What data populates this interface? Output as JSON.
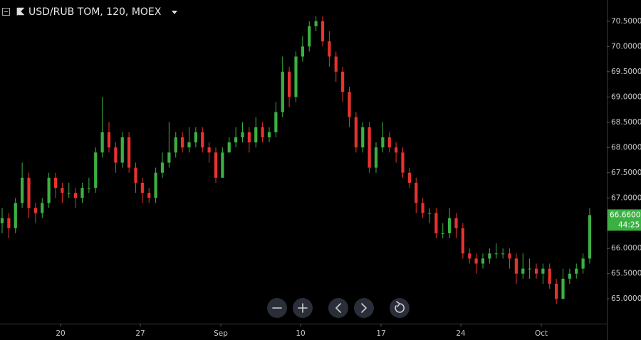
{
  "chart_data": {
    "type": "candlestick",
    "title": "USD/RUB TOM, 120, MOEX",
    "up_color": "#3cb043",
    "down_color": "#e8322e",
    "grid": false,
    "open": [
      66.5,
      66.6,
      66.4,
      66.9,
      67.4,
      66.8,
      66.7,
      66.9,
      67.4,
      67.2,
      67.1,
      67.1,
      67.0,
      67.2,
      67.2,
      67.9,
      68.3,
      68.0,
      67.7,
      68.2,
      67.6,
      67.3,
      67.1,
      67.0,
      67.5,
      67.7,
      67.9,
      68.2,
      68.0,
      68.1,
      68.3,
      68.0,
      67.9,
      67.4,
      67.9,
      68.1,
      68.2,
      68.3,
      68.1,
      68.4,
      68.2,
      68.3,
      68.7,
      69.5,
      69.0,
      69.8,
      70.0,
      70.4,
      70.5,
      70.1,
      69.8,
      69.5,
      69.1,
      68.6,
      68.0,
      68.4,
      67.6,
      68.0,
      68.2,
      68.0,
      67.9,
      67.5,
      67.3,
      66.9,
      66.7,
      66.7,
      66.3,
      66.3,
      66.6,
      66.4,
      65.9,
      65.8,
      65.7,
      65.8,
      65.9,
      65.9,
      65.9,
      65.8,
      65.5,
      65.6,
      65.6,
      65.5,
      65.6,
      65.3,
      65.0,
      65.4,
      65.5,
      65.6,
      65.8
    ],
    "high": [
      66.8,
      66.7,
      67.0,
      67.7,
      67.5,
      66.9,
      67.0,
      67.5,
      67.5,
      67.3,
      67.3,
      67.2,
      67.3,
      67.4,
      68.0,
      69.0,
      68.5,
      68.1,
      68.3,
      68.3,
      67.7,
      67.4,
      67.2,
      67.6,
      67.9,
      68.5,
      68.3,
      68.3,
      68.4,
      68.4,
      68.4,
      68.1,
      68.0,
      68.0,
      68.2,
      68.4,
      68.5,
      68.4,
      68.6,
      68.5,
      68.4,
      68.9,
      69.8,
      69.6,
      69.9,
      70.2,
      70.5,
      70.6,
      70.6,
      70.3,
      69.9,
      69.6,
      69.2,
      68.7,
      68.5,
      68.5,
      68.1,
      68.5,
      68.3,
      68.1,
      68.0,
      67.6,
      67.4,
      67.0,
      66.8,
      66.8,
      66.5,
      66.8,
      66.7,
      66.5,
      66.0,
      65.9,
      65.9,
      66.0,
      66.1,
      66.0,
      66.0,
      65.9,
      65.9,
      65.8,
      65.7,
      65.7,
      65.7,
      65.4,
      65.6,
      65.6,
      65.7,
      65.9,
      66.8
    ],
    "low": [
      66.3,
      66.2,
      66.3,
      66.8,
      66.6,
      66.5,
      66.6,
      66.8,
      67.0,
      66.9,
      67.0,
      66.8,
      66.9,
      67.1,
      67.1,
      67.8,
      67.9,
      67.5,
      67.6,
      67.5,
      67.1,
      66.9,
      66.9,
      66.9,
      67.4,
      67.6,
      67.8,
      67.9,
      67.9,
      68.0,
      67.9,
      67.7,
      67.3,
      67.4,
      67.9,
      68.0,
      68.1,
      67.9,
      68.0,
      68.1,
      68.1,
      68.2,
      68.6,
      68.8,
      68.9,
      69.7,
      69.9,
      70.3,
      70.0,
      69.6,
      69.3,
      68.9,
      68.4,
      67.9,
      67.9,
      67.5,
      67.5,
      67.9,
      67.9,
      67.7,
      67.4,
      67.2,
      66.7,
      66.6,
      66.5,
      66.2,
      66.2,
      66.2,
      66.2,
      65.8,
      65.7,
      65.5,
      65.6,
      65.7,
      65.8,
      65.8,
      65.6,
      65.3,
      65.4,
      65.4,
      65.4,
      65.3,
      65.2,
      64.9,
      65.0,
      65.3,
      65.4,
      65.5,
      65.7
    ],
    "close": [
      66.6,
      66.4,
      66.9,
      67.4,
      66.8,
      66.7,
      66.9,
      67.4,
      67.2,
      67.1,
      67.1,
      67.0,
      67.2,
      67.2,
      67.9,
      68.3,
      68.0,
      67.7,
      68.2,
      67.6,
      67.3,
      67.1,
      67.0,
      67.5,
      67.7,
      67.9,
      68.2,
      68.0,
      68.1,
      68.3,
      68.0,
      67.9,
      67.4,
      67.9,
      68.1,
      68.2,
      68.3,
      68.1,
      68.4,
      68.2,
      68.3,
      68.7,
      69.5,
      69.0,
      69.8,
      70.0,
      70.4,
      70.5,
      70.1,
      69.8,
      69.5,
      69.1,
      68.6,
      68.0,
      68.4,
      67.6,
      68.0,
      68.2,
      68.0,
      67.9,
      67.5,
      67.3,
      66.9,
      66.7,
      66.7,
      66.3,
      66.3,
      66.6,
      66.4,
      65.9,
      65.8,
      65.7,
      65.8,
      65.9,
      65.9,
      65.9,
      65.8,
      65.5,
      65.6,
      65.6,
      65.5,
      65.6,
      65.3,
      65.0,
      65.4,
      65.5,
      65.6,
      65.8,
      66.66
    ],
    "xlim": [
      -0.32,
      90.56
    ],
    "xticks": [
      {
        "value": 8.75,
        "label": "20"
      },
      {
        "value": 20.7,
        "label": "27"
      },
      {
        "value": 32.75,
        "label": "Sep"
      },
      {
        "value": 44.7,
        "label": "10"
      },
      {
        "value": 56.75,
        "label": "17"
      },
      {
        "value": 68.7,
        "label": "24"
      },
      {
        "value": 80.75,
        "label": "Oct"
      }
    ],
    "ylim": [
      64.51,
      70.92
    ],
    "yticks": [
      {
        "value": 65.0,
        "label": "65.0000"
      },
      {
        "value": 65.5,
        "label": "65.5000"
      },
      {
        "value": 66.0,
        "label": "66.0000"
      },
      {
        "value": 66.5,
        "label": "66.5000"
      },
      {
        "value": 67.0,
        "label": "67.0000"
      },
      {
        "value": 67.5,
        "label": "67.5000"
      },
      {
        "value": 68.0,
        "label": "68.0000"
      },
      {
        "value": 68.5,
        "label": "68.5000"
      },
      {
        "value": 69.0,
        "label": "69.0000"
      },
      {
        "value": 69.5,
        "label": "69.5000"
      },
      {
        "value": 70.0,
        "label": "70.0000"
      },
      {
        "value": 70.5,
        "label": "70.5000"
      }
    ],
    "last_price": {
      "value": 66.66,
      "label": "66.6600"
    },
    "countdown": "44:25"
  }
}
